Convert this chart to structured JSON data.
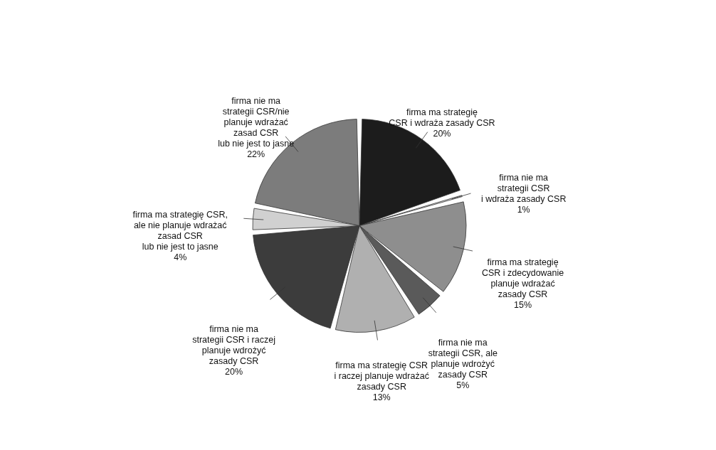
{
  "chart_data": {
    "type": "pie",
    "categories": [
      "firma ma strategię\nCSR i wdraża zasady CSR",
      "firma nie ma\nstrategii CSR\ni wdraża zasady CSR",
      "firma ma strategię\nCSR i zdecydowanie\nplanuje wdrażać\nzasady CSR",
      "firma nie ma\nstrategii CSR, ale\nplanuje wdrożyć\nzasady CSR",
      "firma ma strategię CSR\ni raczej planuje wdrażać\nzasady CSR",
      "firma nie ma\nstrategii CSR i raczej\nplanuje wdrożyć\nzasady CSR",
      "firma ma strategię CSR,\nale nie planuje wdrażać\nzasad CSR\nlub nie jest to jasne",
      "firma nie ma\nstrategii CSR/nie\nplanuje wdrażać\nzasad CSR\nlub nie jest to jasne"
    ],
    "values": [
      20,
      1,
      15,
      5,
      13,
      20,
      4,
      22
    ],
    "value_labels": [
      "20%",
      "1%",
      "15%",
      "5%",
      "13%",
      "20%",
      "4%",
      "22%"
    ],
    "colors": [
      "#1c1c1c",
      "#d6d6d6",
      "#8e8e8e",
      "#5a5a5a",
      "#b0b0b0",
      "#3c3c3c",
      "#d0d0d0",
      "#7c7c7c"
    ]
  }
}
